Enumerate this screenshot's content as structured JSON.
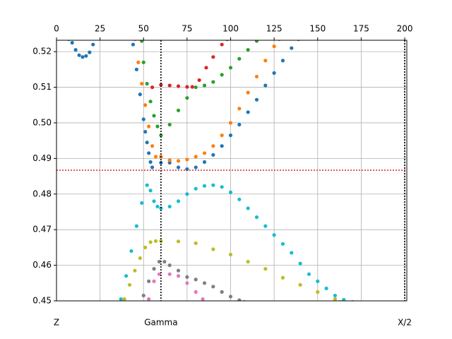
{
  "chart_data": {
    "type": "scatter",
    "xlim": [
      0,
      201.2
    ],
    "ylim": [
      0.45,
      0.5232
    ],
    "xticks": [
      0,
      25,
      50,
      75,
      100,
      125,
      150,
      175,
      200
    ],
    "yticks": [
      {
        "value": 0.45,
        "label": "0.45"
      },
      {
        "value": 0.46,
        "label": "0.46"
      },
      {
        "value": 0.47,
        "label": "0.47"
      },
      {
        "value": 0.48,
        "label": "0.48"
      },
      {
        "value": 0.49,
        "label": "0.49"
      },
      {
        "value": 0.5,
        "label": "0.50"
      },
      {
        "value": 0.51,
        "label": "0.51"
      },
      {
        "value": 0.52,
        "label": "0.52"
      }
    ],
    "grid": true,
    "kpoints": [
      {
        "value": 0,
        "label": "Z"
      },
      {
        "value": 60,
        "label": "Gamma"
      },
      {
        "value": 200,
        "label": "X/2"
      }
    ],
    "kpoint_lines": [
      60,
      200
    ],
    "fermi_level": {
      "value": 0.4867,
      "color": "#d62728"
    },
    "series": [
      {
        "color": "#1f77b4",
        "x": [
          7,
          9,
          11,
          13,
          15,
          17,
          19,
          21,
          44,
          46,
          48,
          50,
          51,
          52,
          53,
          54,
          55,
          60,
          65,
          70,
          75,
          80,
          85,
          90,
          95,
          100,
          105,
          110,
          115,
          120,
          125,
          130,
          135,
          139
        ],
        "values": [
          0.5235,
          0.5225,
          0.5205,
          0.519,
          0.5185,
          0.5188,
          0.5198,
          0.522,
          0.522,
          0.515,
          0.508,
          0.501,
          0.4975,
          0.4945,
          0.4915,
          0.489,
          0.4875,
          0.4888,
          0.4888,
          0.4875,
          0.487,
          0.4875,
          0.489,
          0.491,
          0.4935,
          0.4965,
          0.4995,
          0.503,
          0.5065,
          0.5105,
          0.514,
          0.5175,
          0.521,
          0.5235
        ]
      },
      {
        "color": "#ff7f0e",
        "x": [
          45,
          47,
          49,
          51,
          53,
          55,
          57,
          60,
          65,
          70,
          75,
          80,
          85,
          90,
          95,
          100,
          105,
          110,
          115,
          120,
          125,
          128
        ],
        "values": [
          0.5235,
          0.517,
          0.511,
          0.505,
          0.499,
          0.4935,
          0.4905,
          0.4905,
          0.4895,
          0.4893,
          0.4897,
          0.4905,
          0.4915,
          0.4935,
          0.4965,
          0.5,
          0.504,
          0.5085,
          0.513,
          0.5175,
          0.5215,
          0.5235
        ]
      },
      {
        "color": "#2ca02c",
        "x": [
          49,
          50,
          52,
          54,
          56,
          58,
          60,
          65,
          70,
          75,
          80,
          85,
          90,
          95,
          100,
          105,
          110,
          115
        ],
        "values": [
          0.523,
          0.517,
          0.511,
          0.506,
          0.502,
          0.499,
          0.4965,
          0.4995,
          0.5035,
          0.507,
          0.51,
          0.5105,
          0.5115,
          0.5135,
          0.5155,
          0.518,
          0.5205,
          0.523
        ]
      },
      {
        "color": "#d62728",
        "x": [
          55,
          60,
          65,
          70,
          75,
          78,
          82,
          86,
          90,
          95,
          98
        ],
        "values": [
          0.51,
          0.5107,
          0.5105,
          0.5103,
          0.5101,
          0.5101,
          0.512,
          0.5155,
          0.5185,
          0.522,
          0.5235
        ]
      },
      {
        "color": "#17becf",
        "x": [
          37,
          40,
          43,
          46,
          49,
          52,
          54,
          56,
          58,
          60,
          65,
          70,
          75,
          80,
          85,
          90,
          95,
          100,
          105,
          110,
          115,
          120,
          125,
          130,
          135,
          140,
          145,
          150,
          155,
          160,
          165,
          170
        ],
        "values": [
          0.4505,
          0.457,
          0.464,
          0.471,
          0.4775,
          0.4825,
          0.481,
          0.478,
          0.4765,
          0.476,
          0.4765,
          0.478,
          0.48,
          0.4815,
          0.4823,
          0.4825,
          0.482,
          0.4805,
          0.4785,
          0.476,
          0.4735,
          0.471,
          0.4685,
          0.466,
          0.4635,
          0.4605,
          0.4575,
          0.4555,
          0.4535,
          0.4515,
          0.4503,
          0.4497
        ]
      },
      {
        "color": "#bcbd22",
        "x": [
          39,
          42,
          45,
          48,
          51,
          54,
          57,
          60,
          70,
          80,
          90,
          100,
          110,
          120,
          130,
          140,
          150,
          160,
          163
        ],
        "values": [
          0.4505,
          0.4545,
          0.4585,
          0.462,
          0.465,
          0.4665,
          0.4668,
          0.4668,
          0.4667,
          0.4662,
          0.4645,
          0.463,
          0.461,
          0.459,
          0.4565,
          0.4545,
          0.4525,
          0.4505,
          0.4497
        ]
      },
      {
        "color": "#7f7f7f",
        "x": [
          50,
          53,
          56,
          59,
          62,
          65,
          70,
          75,
          80,
          85,
          90,
          95,
          100,
          105,
          108
        ],
        "values": [
          0.4515,
          0.4555,
          0.459,
          0.461,
          0.461,
          0.46,
          0.4585,
          0.4567,
          0.456,
          0.455,
          0.454,
          0.4525,
          0.4512,
          0.4502,
          0.4497
        ]
      },
      {
        "color": "#e377c2",
        "x": [
          53,
          56,
          59,
          65,
          70,
          75,
          80,
          84
        ],
        "values": [
          0.4505,
          0.4555,
          0.4575,
          0.4575,
          0.457,
          0.455,
          0.4525,
          0.4505
        ]
      }
    ]
  }
}
